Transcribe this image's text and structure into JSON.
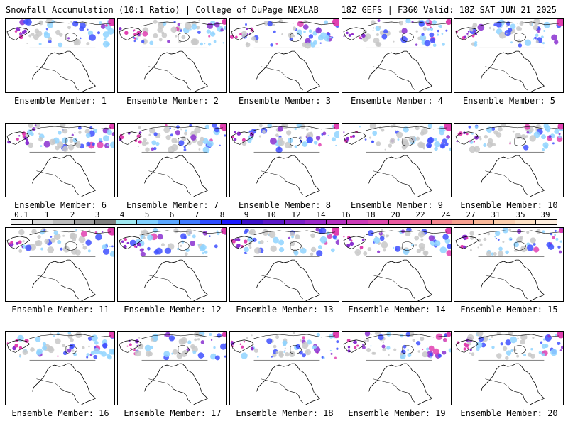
{
  "header": {
    "left_title": "Snowfall Accumulation (10:1 Ratio) | College of DuPage NEXLAB",
    "right_title": "18Z GEFS | F360 Valid: 18Z SAT JUN 21 2025"
  },
  "panels": [
    {
      "label": "Ensemble Member: 1"
    },
    {
      "label": "Ensemble Member: 2"
    },
    {
      "label": "Ensemble Member: 3"
    },
    {
      "label": "Ensemble Member: 4"
    },
    {
      "label": "Ensemble Member: 5"
    },
    {
      "label": "Ensemble Member: 6"
    },
    {
      "label": "Ensemble Member: 7"
    },
    {
      "label": "Ensemble Member: 8"
    },
    {
      "label": "Ensemble Member: 9"
    },
    {
      "label": "Ensemble Member: 10"
    },
    {
      "label": "Ensemble Member: 11"
    },
    {
      "label": "Ensemble Member: 12"
    },
    {
      "label": "Ensemble Member: 13"
    },
    {
      "label": "Ensemble Member: 14"
    },
    {
      "label": "Ensemble Member: 15"
    },
    {
      "label": "Ensemble Member: 16"
    },
    {
      "label": "Ensemble Member: 17"
    },
    {
      "label": "Ensemble Member: 18"
    },
    {
      "label": "Ensemble Member: 19"
    },
    {
      "label": "Ensemble Member: 20"
    }
  ],
  "legend": {
    "ticks": [
      "0.1",
      "1",
      "2",
      "3",
      "4",
      "5",
      "6",
      "7",
      "8",
      "9",
      "10",
      "12",
      "14",
      "16",
      "18",
      "20",
      "22",
      "24",
      "27",
      "31",
      "35",
      "39"
    ],
    "colors": [
      "#f2f2f2",
      "#d9d9d9",
      "#bdbdbd",
      "#a0a0a0",
      "#7f7f7f",
      "#9fe8f0",
      "#7fd0ff",
      "#5aa7ff",
      "#3f7bff",
      "#2d4cff",
      "#1a1aff",
      "#3a10c8",
      "#5b18c8",
      "#7a20c8",
      "#9a28c8",
      "#b530c0",
      "#cc3ab8",
      "#de48ac",
      "#ea5aa0",
      "#f06e98",
      "#f4868f",
      "#f7a090",
      "#f9b89a",
      "#fbcfae",
      "#fde2c6",
      "#fff0e0"
    ]
  },
  "colors": {
    "snow_light": "#c8c8c8",
    "snow_mid": "#8fd4ff",
    "snow_blue": "#3f50ff",
    "snow_purple": "#8a30d0",
    "snow_magenta": "#e040b0"
  }
}
